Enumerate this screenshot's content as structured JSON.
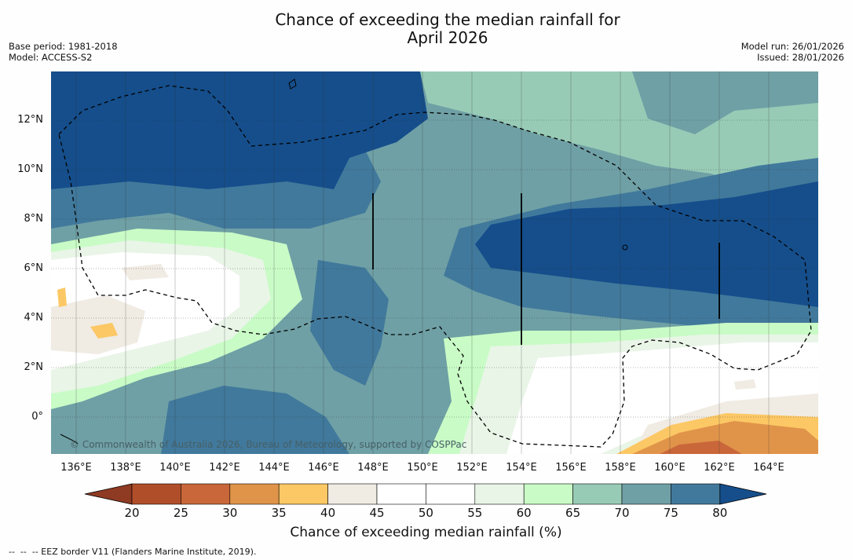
{
  "title_line1": "Chance of exceeding the median rainfall for",
  "title_line2": "April 2026",
  "base_period": "Base period: 1981-2018",
  "model": "Model: ACCESS-S2",
  "model_run": "Model run: 26/01/2026",
  "issued": "Issued: 28/01/2026",
  "copyright": "© Commonwealth of Australia 2026, Bureau of Meteorology, supported by COSPPac",
  "lat_labels": [
    "12°N",
    "10°N",
    "8°N",
    "6°N",
    "4°N",
    "2°N",
    "0°"
  ],
  "lon_labels": [
    "136°E",
    "138°E",
    "140°E",
    "142°E",
    "144°E",
    "146°E",
    "148°E",
    "150°E",
    "152°E",
    "154°E",
    "156°E",
    "158°E",
    "160°E",
    "162°E",
    "164°E"
  ],
  "colorbar": {
    "ticks": [
      "20",
      "25",
      "30",
      "35",
      "40",
      "45",
      "50",
      "55",
      "60",
      "65",
      "70",
      "75",
      "80"
    ],
    "colors": [
      "#8f3a22",
      "#b04e2a",
      "#c9673a",
      "#e0944a",
      "#fcc865",
      "#f0ebe3",
      "#ffffff",
      "#ffffff",
      "#e9f5e7",
      "#c9fbc6",
      "#98cbb6",
      "#6fa0a5",
      "#41799c",
      "#154e8b"
    ],
    "label": "Chance of exceeding median rainfall (%)"
  },
  "footnote": "--  --  -- EEZ border V11 (Flanders Marine Institute, 2019)."
}
